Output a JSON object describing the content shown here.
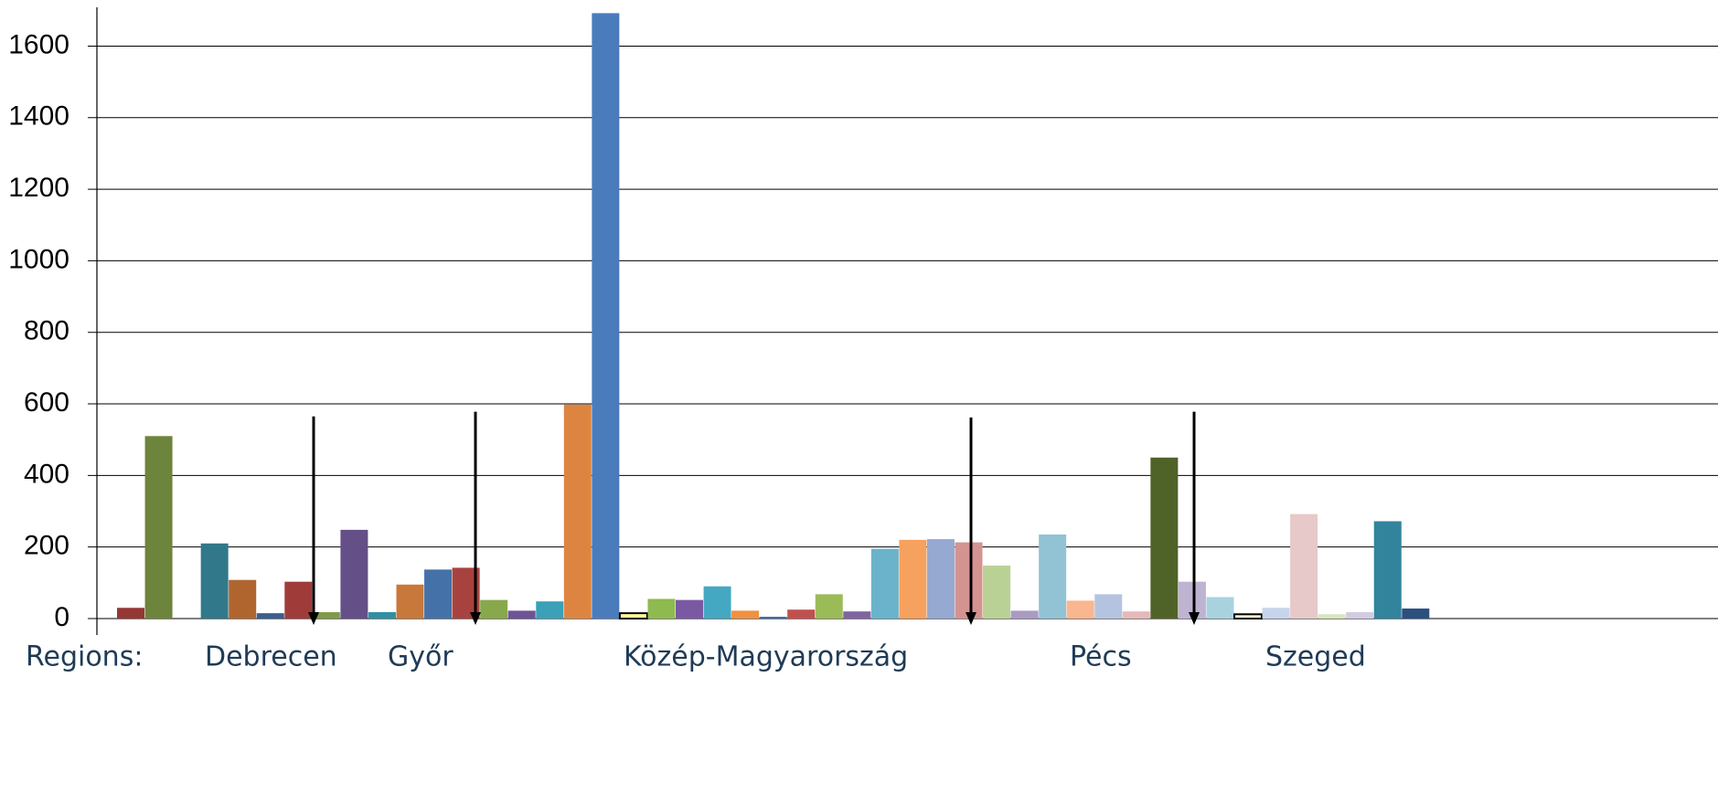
{
  "chart_data": {
    "type": "bar",
    "title": "",
    "xlabel": "",
    "ylabel": "",
    "ylim": [
      0,
      1700
    ],
    "yticks": [
      0,
      200,
      400,
      600,
      800,
      1000,
      1200,
      1400,
      1600
    ],
    "grid": true,
    "legend": "none",
    "region_labels": [
      "Regions:",
      "Debrecen",
      "Győr",
      "Közép-Magyarország",
      "Pécs",
      "Szeged"
    ],
    "bars": [
      {
        "value": 30,
        "color": "#953735"
      },
      {
        "value": 510,
        "color": "#6c843b"
      },
      {
        "value": 0,
        "color": "#ffffff"
      },
      {
        "value": 210,
        "color": "#31788a"
      },
      {
        "value": 108,
        "color": "#b0652f"
      },
      {
        "value": 15,
        "color": "#3a5f8e"
      },
      {
        "value": 103,
        "color": "#9f3c3a"
      },
      {
        "value": 18,
        "color": "#7f9b48"
      },
      {
        "value": 248,
        "color": "#654f87"
      },
      {
        "value": 18,
        "color": "#2f8fa3"
      },
      {
        "value": 95,
        "color": "#c8783b"
      },
      {
        "value": 137,
        "color": "#4472a8"
      },
      {
        "value": 142,
        "color": "#a8423f"
      },
      {
        "value": 52,
        "color": "#87a84b"
      },
      {
        "value": 22,
        "color": "#6e5397"
      },
      {
        "value": 48,
        "color": "#3ba0b8"
      },
      {
        "value": 598,
        "color": "#dd8540"
      },
      {
        "value": 1692,
        "color": "#4a7cbc"
      },
      {
        "value": 15,
        "color": "#ffff99",
        "stroke": "#000000"
      },
      {
        "value": 55,
        "color": "#8fba4f"
      },
      {
        "value": 52,
        "color": "#7a59a3"
      },
      {
        "value": 90,
        "color": "#44a8c2"
      },
      {
        "value": 22,
        "color": "#f09040"
      },
      {
        "value": 5,
        "color": "#3e6aa6"
      },
      {
        "value": 25,
        "color": "#c0504d"
      },
      {
        "value": 68,
        "color": "#9bbb59"
      },
      {
        "value": 20,
        "color": "#8064a2"
      },
      {
        "value": 195,
        "color": "#6ab3cb"
      },
      {
        "value": 220,
        "color": "#f7a15e"
      },
      {
        "value": 222,
        "color": "#95a9d1"
      },
      {
        "value": 213,
        "color": "#d49390"
      },
      {
        "value": 148,
        "color": "#b9d195"
      },
      {
        "value": 22,
        "color": "#aa9bc3"
      },
      {
        "value": 235,
        "color": "#91c3d5"
      },
      {
        "value": 50,
        "color": "#fab68e"
      },
      {
        "value": 68,
        "color": "#b4c4e0"
      },
      {
        "value": 20,
        "color": "#e6b9b8"
      },
      {
        "value": 450,
        "color": "#4f6228"
      },
      {
        "value": 103,
        "color": "#bfb3d2"
      },
      {
        "value": 60,
        "color": "#a9d2df"
      },
      {
        "value": 12,
        "color": "#ffffcc",
        "stroke": "#000000"
      },
      {
        "value": 30,
        "color": "#c6d5ec"
      },
      {
        "value": 292,
        "color": "#e6c9c8"
      },
      {
        "value": 12,
        "color": "#d7e4bd"
      },
      {
        "value": 18,
        "color": "#d3cbe1"
      },
      {
        "value": 272,
        "color": "#31849b"
      },
      {
        "value": 28,
        "color": "#2b4f7f"
      }
    ],
    "arrows": [
      {
        "x_value": 343,
        "top_value": 565
      },
      {
        "x_value": 520,
        "top_value": 578
      },
      {
        "x_value": 1062,
        "top_value": 562
      },
      {
        "x_value": 1306,
        "top_value": 578
      }
    ]
  }
}
